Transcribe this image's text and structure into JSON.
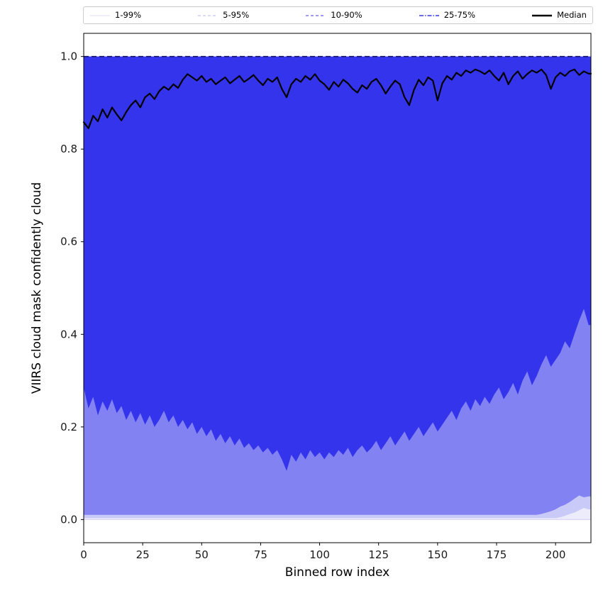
{
  "figure": {
    "background": "#ffffff"
  },
  "chart_data": {
    "type": "area",
    "title": "",
    "xlabel": "Binned row index",
    "ylabel": "VIIRS cloud mask confidently cloud",
    "xlim": [
      0,
      215
    ],
    "ylim": [
      -0.05,
      1.05
    ],
    "grid": false,
    "legend_position": "top",
    "xticks": [
      {
        "v": 0,
        "label": "0"
      },
      {
        "v": 25,
        "label": "25"
      },
      {
        "v": 50,
        "label": "50"
      },
      {
        "v": 75,
        "label": "75"
      },
      {
        "v": 100,
        "label": "100"
      },
      {
        "v": 125,
        "label": "125"
      },
      {
        "v": 150,
        "label": "150"
      },
      {
        "v": 175,
        "label": "175"
      },
      {
        "v": 200,
        "label": "200"
      }
    ],
    "yticks": [
      {
        "v": 0.0,
        "label": "0.0"
      },
      {
        "v": 0.2,
        "label": "0.2"
      },
      {
        "v": 0.4,
        "label": "0.4"
      },
      {
        "v": 0.6,
        "label": "0.6"
      },
      {
        "v": 0.8,
        "label": "0.8"
      },
      {
        "v": 1.0,
        "label": "1.0"
      }
    ],
    "upper_value": 1.0,
    "x": [
      0,
      2,
      4,
      6,
      8,
      10,
      12,
      14,
      16,
      18,
      20,
      22,
      24,
      26,
      28,
      30,
      32,
      34,
      36,
      38,
      40,
      42,
      44,
      46,
      48,
      50,
      52,
      54,
      56,
      58,
      60,
      62,
      64,
      66,
      68,
      70,
      72,
      74,
      76,
      78,
      80,
      82,
      84,
      86,
      88,
      90,
      92,
      94,
      96,
      98,
      100,
      102,
      104,
      106,
      108,
      110,
      112,
      114,
      116,
      118,
      120,
      122,
      124,
      126,
      128,
      130,
      132,
      134,
      136,
      138,
      140,
      142,
      144,
      146,
      148,
      150,
      152,
      154,
      156,
      158,
      160,
      162,
      164,
      166,
      168,
      170,
      172,
      174,
      176,
      178,
      180,
      182,
      184,
      186,
      188,
      190,
      192,
      194,
      196,
      198,
      200,
      202,
      204,
      206,
      208,
      210,
      212,
      214
    ],
    "bands": [
      {
        "name": "1-99%",
        "fill": "#ececfb",
        "lower": [
          0,
          0,
          0,
          0,
          0,
          0,
          0,
          0,
          0,
          0,
          0,
          0,
          0,
          0,
          0,
          0,
          0,
          0,
          0,
          0,
          0,
          0,
          0,
          0,
          0,
          0,
          0,
          0,
          0,
          0,
          0,
          0,
          0,
          0,
          0,
          0,
          0,
          0,
          0,
          0,
          0,
          0,
          0,
          0,
          0,
          0,
          0,
          0,
          0,
          0,
          0,
          0,
          0,
          0,
          0,
          0,
          0,
          0,
          0,
          0,
          0,
          0,
          0,
          0,
          0,
          0,
          0,
          0,
          0,
          0,
          0,
          0,
          0,
          0,
          0,
          0,
          0,
          0,
          0,
          0,
          0,
          0,
          0,
          0,
          0,
          0,
          0,
          0,
          0,
          0,
          0,
          0,
          0,
          0,
          0,
          0,
          0,
          0,
          0,
          0,
          0,
          0,
          0,
          0,
          0,
          0,
          0,
          0
        ]
      },
      {
        "name": "5-95%",
        "fill": "#cacaf8",
        "lower": [
          0.003,
          0.003,
          0.003,
          0.003,
          0.003,
          0.003,
          0.003,
          0.003,
          0.003,
          0.003,
          0.003,
          0.003,
          0.003,
          0.003,
          0.003,
          0.003,
          0.003,
          0.003,
          0.003,
          0.003,
          0.003,
          0.003,
          0.003,
          0.003,
          0.003,
          0.003,
          0.003,
          0.003,
          0.003,
          0.003,
          0.003,
          0.003,
          0.003,
          0.003,
          0.003,
          0.003,
          0.003,
          0.003,
          0.003,
          0.003,
          0.003,
          0.003,
          0.003,
          0.003,
          0.003,
          0.003,
          0.003,
          0.003,
          0.003,
          0.003,
          0.003,
          0.003,
          0.003,
          0.003,
          0.003,
          0.003,
          0.003,
          0.003,
          0.003,
          0.003,
          0.003,
          0.003,
          0.003,
          0.003,
          0.003,
          0.003,
          0.003,
          0.003,
          0.003,
          0.003,
          0.003,
          0.003,
          0.003,
          0.003,
          0.003,
          0.003,
          0.003,
          0.003,
          0.003,
          0.003,
          0.003,
          0.003,
          0.003,
          0.003,
          0.003,
          0.003,
          0.003,
          0.003,
          0.003,
          0.003,
          0.003,
          0.003,
          0.003,
          0.003,
          0.003,
          0.003,
          0.003,
          0.003,
          0.003,
          0.003,
          0.003,
          0.005,
          0.008,
          0.012,
          0.015,
          0.02,
          0.025,
          0.022
        ]
      },
      {
        "name": "10-90%",
        "fill": "#8282f2",
        "lower": [
          0.01,
          0.01,
          0.01,
          0.01,
          0.01,
          0.01,
          0.01,
          0.01,
          0.01,
          0.01,
          0.01,
          0.01,
          0.01,
          0.01,
          0.01,
          0.01,
          0.01,
          0.01,
          0.01,
          0.01,
          0.01,
          0.01,
          0.01,
          0.01,
          0.01,
          0.01,
          0.01,
          0.01,
          0.01,
          0.01,
          0.01,
          0.01,
          0.01,
          0.01,
          0.01,
          0.01,
          0.01,
          0.01,
          0.01,
          0.01,
          0.01,
          0.01,
          0.01,
          0.01,
          0.01,
          0.01,
          0.01,
          0.01,
          0.01,
          0.01,
          0.01,
          0.01,
          0.01,
          0.01,
          0.01,
          0.01,
          0.01,
          0.01,
          0.01,
          0.01,
          0.01,
          0.01,
          0.01,
          0.01,
          0.01,
          0.01,
          0.01,
          0.01,
          0.01,
          0.01,
          0.01,
          0.01,
          0.01,
          0.01,
          0.01,
          0.01,
          0.01,
          0.01,
          0.01,
          0.01,
          0.01,
          0.01,
          0.01,
          0.01,
          0.01,
          0.01,
          0.01,
          0.01,
          0.01,
          0.01,
          0.01,
          0.01,
          0.01,
          0.01,
          0.01,
          0.01,
          0.01,
          0.012,
          0.015,
          0.018,
          0.022,
          0.028,
          0.032,
          0.038,
          0.045,
          0.052,
          0.048,
          0.05
        ]
      },
      {
        "name": "25-75%",
        "fill": "#3434ec",
        "lower": [
          0.285,
          0.24,
          0.265,
          0.225,
          0.255,
          0.235,
          0.26,
          0.23,
          0.245,
          0.215,
          0.235,
          0.21,
          0.23,
          0.205,
          0.225,
          0.2,
          0.215,
          0.235,
          0.21,
          0.225,
          0.2,
          0.215,
          0.195,
          0.21,
          0.185,
          0.2,
          0.18,
          0.195,
          0.17,
          0.185,
          0.165,
          0.18,
          0.16,
          0.175,
          0.155,
          0.165,
          0.15,
          0.16,
          0.145,
          0.155,
          0.14,
          0.15,
          0.13,
          0.105,
          0.14,
          0.125,
          0.145,
          0.13,
          0.15,
          0.135,
          0.145,
          0.13,
          0.145,
          0.135,
          0.15,
          0.14,
          0.155,
          0.135,
          0.15,
          0.16,
          0.145,
          0.155,
          0.17,
          0.15,
          0.165,
          0.18,
          0.16,
          0.175,
          0.19,
          0.17,
          0.185,
          0.2,
          0.18,
          0.195,
          0.21,
          0.19,
          0.205,
          0.22,
          0.235,
          0.215,
          0.24,
          0.255,
          0.235,
          0.26,
          0.245,
          0.265,
          0.25,
          0.27,
          0.285,
          0.26,
          0.275,
          0.295,
          0.27,
          0.3,
          0.32,
          0.29,
          0.31,
          0.335,
          0.355,
          0.33,
          0.345,
          0.36,
          0.385,
          0.37,
          0.4,
          0.43,
          0.455,
          0.42
        ]
      }
    ],
    "median": {
      "name": "Median",
      "color": "#000000",
      "values": [
        0.858,
        0.845,
        0.872,
        0.86,
        0.886,
        0.868,
        0.89,
        0.875,
        0.862,
        0.88,
        0.895,
        0.905,
        0.89,
        0.912,
        0.92,
        0.908,
        0.925,
        0.935,
        0.928,
        0.94,
        0.932,
        0.95,
        0.962,
        0.955,
        0.948,
        0.958,
        0.945,
        0.952,
        0.94,
        0.948,
        0.955,
        0.942,
        0.95,
        0.958,
        0.945,
        0.952,
        0.96,
        0.948,
        0.938,
        0.952,
        0.945,
        0.955,
        0.93,
        0.912,
        0.94,
        0.952,
        0.945,
        0.958,
        0.95,
        0.962,
        0.948,
        0.94,
        0.928,
        0.945,
        0.935,
        0.95,
        0.942,
        0.93,
        0.922,
        0.938,
        0.93,
        0.945,
        0.952,
        0.938,
        0.92,
        0.935,
        0.948,
        0.94,
        0.912,
        0.895,
        0.928,
        0.95,
        0.938,
        0.955,
        0.948,
        0.905,
        0.942,
        0.958,
        0.95,
        0.965,
        0.958,
        0.97,
        0.965,
        0.972,
        0.968,
        0.962,
        0.97,
        0.958,
        0.948,
        0.965,
        0.94,
        0.958,
        0.968,
        0.952,
        0.962,
        0.97,
        0.965,
        0.972,
        0.96,
        0.93,
        0.955,
        0.965,
        0.958,
        0.968,
        0.972,
        0.96,
        0.968,
        0.963
      ]
    },
    "top_line": {
      "y": 1.0,
      "color": "#10105f",
      "dash": "7 4",
      "width": 1.6
    },
    "zero_line": {
      "y": 0.0,
      "color": "#ddd5f6",
      "width": 1.2
    },
    "legend": {
      "items": [
        {
          "label": "1-99%",
          "color": "#e3e3f8",
          "style": "solid",
          "width": 1.2
        },
        {
          "label": "5-95%",
          "color": "#c4c4f5",
          "style": "dashed",
          "width": 1.2
        },
        {
          "label": "10-90%",
          "color": "#7b7bf0",
          "style": "dashed",
          "width": 1.4
        },
        {
          "label": "25-75%",
          "color": "#3a3ae0",
          "style": "dashdot",
          "width": 1.4
        },
        {
          "label": "Median",
          "color": "#000000",
          "style": "solid",
          "width": 2.6
        }
      ]
    }
  }
}
